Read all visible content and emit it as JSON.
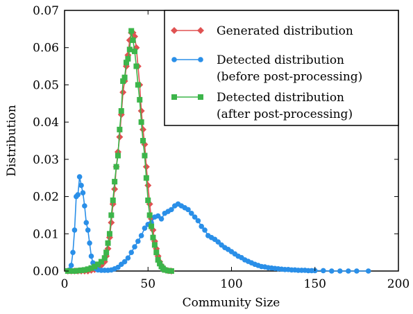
{
  "chart_data": {
    "type": "line",
    "title": "",
    "xlabel": "Community Size",
    "ylabel": "Distribution",
    "xlim": [
      0,
      200
    ],
    "ylim": [
      0,
      0.07
    ],
    "x_ticks": [
      0,
      50,
      100,
      150,
      200
    ],
    "y_ticks": [
      0.0,
      0.01,
      0.02,
      0.03,
      0.04,
      0.05,
      0.06,
      0.07
    ],
    "x_tick_labels": [
      "0",
      "50",
      "100",
      "150",
      "200"
    ],
    "y_tick_labels": [
      "0.00",
      "0.01",
      "0.02",
      "0.03",
      "0.04",
      "0.05",
      "0.06",
      "0.07"
    ],
    "grid": false,
    "legend_position": "top-right",
    "series": [
      {
        "name": "Generated distribution",
        "color": "#e05252",
        "marker": "diamond",
        "x": [
          2,
          4,
          6,
          8,
          10,
          12,
          14,
          16,
          18,
          20,
          22,
          24,
          25,
          26,
          27,
          28,
          29,
          30,
          31,
          32,
          33,
          34,
          35,
          36,
          37,
          38,
          39,
          40,
          41,
          42,
          43,
          44,
          45,
          46,
          47,
          48,
          49,
          50,
          51,
          52,
          53,
          54,
          55,
          56,
          57,
          58,
          59,
          60,
          62,
          64
        ],
        "y": [
          0,
          0,
          0,
          0,
          0,
          0,
          0,
          0.0002,
          0.0004,
          0.0008,
          0.0015,
          0.0025,
          0.004,
          0.006,
          0.009,
          0.013,
          0.018,
          0.022,
          0.028,
          0.032,
          0.036,
          0.042,
          0.048,
          0.051,
          0.055,
          0.058,
          0.062,
          0.064,
          0.064,
          0.063,
          0.06,
          0.055,
          0.05,
          0.043,
          0.038,
          0.034,
          0.028,
          0.023,
          0.018,
          0.014,
          0.011,
          0.008,
          0.006,
          0.004,
          0.0025,
          0.0015,
          0.0008,
          0.0004,
          0.0001,
          0
        ]
      },
      {
        "name": "Detected distribution\n(before post-processing)",
        "color": "#2a8fe8",
        "marker": "circle",
        "x": [
          2,
          3,
          4,
          5,
          6,
          7,
          8,
          9,
          10,
          11,
          12,
          13,
          14,
          15,
          16,
          17,
          18,
          19,
          20,
          22,
          24,
          26,
          28,
          30,
          32,
          34,
          36,
          38,
          40,
          42,
          44,
          46,
          48,
          50,
          52,
          54,
          56,
          58,
          60,
          62,
          64,
          66,
          68,
          70,
          72,
          74,
          76,
          78,
          80,
          82,
          84,
          86,
          88,
          90,
          92,
          94,
          96,
          98,
          100,
          102,
          104,
          106,
          108,
          110,
          112,
          114,
          116,
          118,
          120,
          122,
          124,
          126,
          128,
          130,
          132,
          134,
          136,
          138,
          140,
          142,
          144,
          146,
          148,
          150,
          155,
          160,
          165,
          170,
          175,
          182
        ],
        "y": [
          0,
          0.0003,
          0.0015,
          0.005,
          0.011,
          0.02,
          0.0205,
          0.0253,
          0.023,
          0.021,
          0.0175,
          0.013,
          0.011,
          0.0075,
          0.004,
          0.0022,
          0.0012,
          0.0006,
          0.0003,
          0.0002,
          0.0002,
          0.0002,
          0.0003,
          0.0006,
          0.001,
          0.0018,
          0.0025,
          0.0035,
          0.005,
          0.0065,
          0.008,
          0.0095,
          0.0115,
          0.0125,
          0.013,
          0.0145,
          0.0148,
          0.014,
          0.0155,
          0.016,
          0.0165,
          0.0175,
          0.018,
          0.0175,
          0.017,
          0.0165,
          0.0155,
          0.0145,
          0.0135,
          0.012,
          0.011,
          0.0095,
          0.009,
          0.0085,
          0.0078,
          0.007,
          0.0063,
          0.0058,
          0.0052,
          0.0046,
          0.004,
          0.0036,
          0.003,
          0.0026,
          0.0022,
          0.0018,
          0.0015,
          0.0012,
          0.0011,
          0.0009,
          0.0008,
          0.0007,
          0.0006,
          0.0005,
          0.0004,
          0.0004,
          0.0003,
          0.0003,
          0.0002,
          0.0002,
          0.0002,
          0.0001,
          0.0001,
          0.0001,
          0.0001,
          0,
          0,
          0,
          0,
          0
        ]
      },
      {
        "name": "Detected distribution\n(after post-processing)",
        "color": "#3cb54a",
        "marker": "square",
        "x": [
          2,
          4,
          6,
          8,
          10,
          12,
          14,
          16,
          18,
          20,
          22,
          24,
          25,
          26,
          27,
          28,
          29,
          30,
          31,
          32,
          33,
          34,
          35,
          36,
          37,
          38,
          39,
          40,
          41,
          42,
          43,
          44,
          45,
          46,
          47,
          48,
          49,
          50,
          51,
          52,
          53,
          54,
          55,
          56,
          57,
          58,
          59,
          60,
          62,
          64
        ],
        "y": [
          0,
          0,
          0,
          0.0001,
          0.0002,
          0.0003,
          0.0005,
          0.0008,
          0.0012,
          0.0018,
          0.0025,
          0.0035,
          0.005,
          0.0075,
          0.01,
          0.015,
          0.019,
          0.024,
          0.028,
          0.031,
          0.038,
          0.043,
          0.051,
          0.052,
          0.056,
          0.057,
          0.0595,
          0.0645,
          0.062,
          0.059,
          0.055,
          0.05,
          0.046,
          0.04,
          0.035,
          0.031,
          0.025,
          0.019,
          0.015,
          0.012,
          0.009,
          0.007,
          0.005,
          0.003,
          0.002,
          0.0012,
          0.0007,
          0.0003,
          0.0001,
          0
        ]
      }
    ]
  }
}
